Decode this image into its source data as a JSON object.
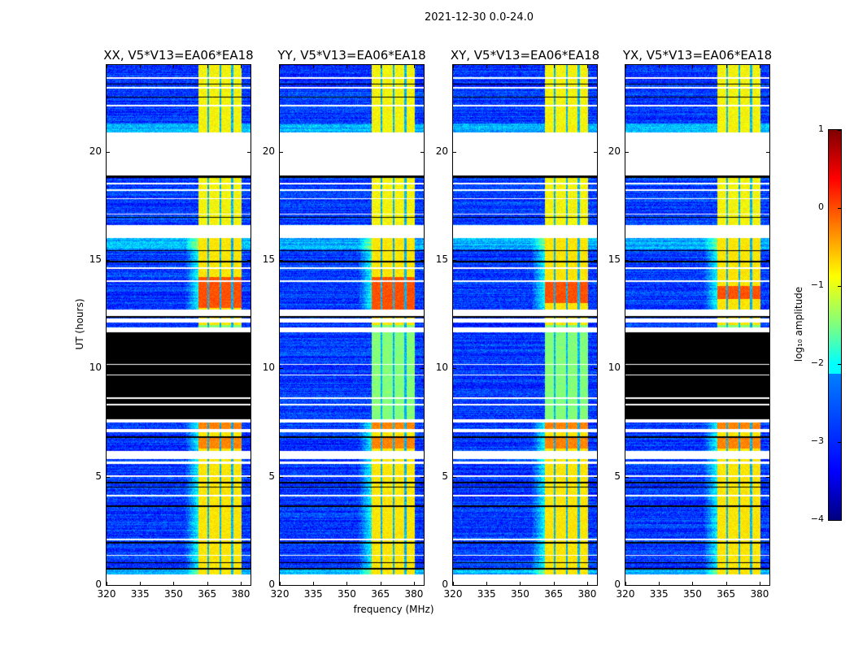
{
  "figure_title": "2021-12-30 0.0-24.0",
  "chart_data": {
    "type": "heatmap",
    "xlabel": "frequency (MHz)",
    "ylabel": "UT (hours)",
    "xlim": [
      320,
      384.4
    ],
    "ylim": [
      0,
      24
    ],
    "xticks": [
      320,
      335,
      350,
      365,
      380
    ],
    "yticks": [
      0,
      5,
      10,
      15,
      20
    ],
    "panels": [
      {
        "title": "XX, V5*V13=EA06*EA18",
        "zeroed_ut": [
          [
            7.65,
            11.65
          ]
        ],
        "strong_ut": [
          12.8,
          14.2
        ]
      },
      {
        "title": "YY, V5*V13=EA06*EA18",
        "zeroed_ut": [],
        "strong_ut": [
          12.6,
          14.2
        ]
      },
      {
        "title": "XY, V5*V13=EA06*EA18",
        "zeroed_ut": [],
        "strong_ut": [
          13.0,
          14.0
        ]
      },
      {
        "title": "YX, V5*V13=EA06*EA18",
        "zeroed_ut": [
          [
            7.65,
            11.65
          ]
        ],
        "strong_ut": [
          13.2,
          13.8
        ]
      }
    ],
    "rfi_band_mhz": [
      361,
      380.5
    ],
    "rfi_gap_lines_mhz": [
      365.5,
      370.8,
      376.2
    ],
    "background_log_amp": -3.1,
    "rfi_log_amp": -0.8,
    "flagged_ut": [
      [
        0,
        0.5
      ],
      [
        1.35,
        1.4
      ],
      [
        2.05,
        2.12
      ],
      [
        4.1,
        4.15
      ],
      [
        5.0,
        5.05
      ],
      [
        5.6,
        5.7
      ],
      [
        5.8,
        6.2
      ],
      [
        7.05,
        7.2
      ],
      [
        7.5,
        7.65
      ],
      [
        8.3,
        8.35
      ],
      [
        8.6,
        8.65
      ],
      [
        9.66,
        9.7
      ],
      [
        10.15,
        10.2
      ],
      [
        11.65,
        11.9
      ],
      [
        12.1,
        12.3
      ],
      [
        12.4,
        12.7
      ],
      [
        14.0,
        14.05
      ],
      [
        14.6,
        14.65
      ],
      [
        16.0,
        16.6
      ],
      [
        17.1,
        17.15
      ],
      [
        17.8,
        17.85
      ],
      [
        18.2,
        18.25
      ],
      [
        18.5,
        18.55
      ],
      [
        18.9,
        20.9
      ],
      [
        22.1,
        22.15
      ],
      [
        22.9,
        23.0
      ],
      [
        23.35,
        23.45
      ]
    ],
    "black_lines_ut": [
      [
        0.7,
        0.8
      ],
      [
        1.0,
        1.05
      ],
      [
        1.9,
        2.0
      ],
      [
        3.6,
        3.68
      ],
      [
        4.5,
        4.55
      ],
      [
        4.7,
        4.75
      ],
      [
        6.8,
        6.85
      ],
      [
        12.35,
        12.4
      ],
      [
        14.9,
        14.95
      ],
      [
        15.4,
        15.45
      ],
      [
        16.95,
        17.0
      ],
      [
        18.8,
        18.9
      ],
      [
        22.5,
        22.55
      ],
      [
        23.1,
        23.15
      ]
    ],
    "colorbar": {
      "label": "log₁₀ amplitude",
      "range": [
        -4,
        1
      ],
      "ticks": [
        "−4",
        "−3",
        "−2",
        "−1",
        "0",
        "1"
      ],
      "tick_values": [
        -4,
        -3,
        -2,
        -1,
        0,
        1
      ],
      "colormap": "jet"
    }
  }
}
